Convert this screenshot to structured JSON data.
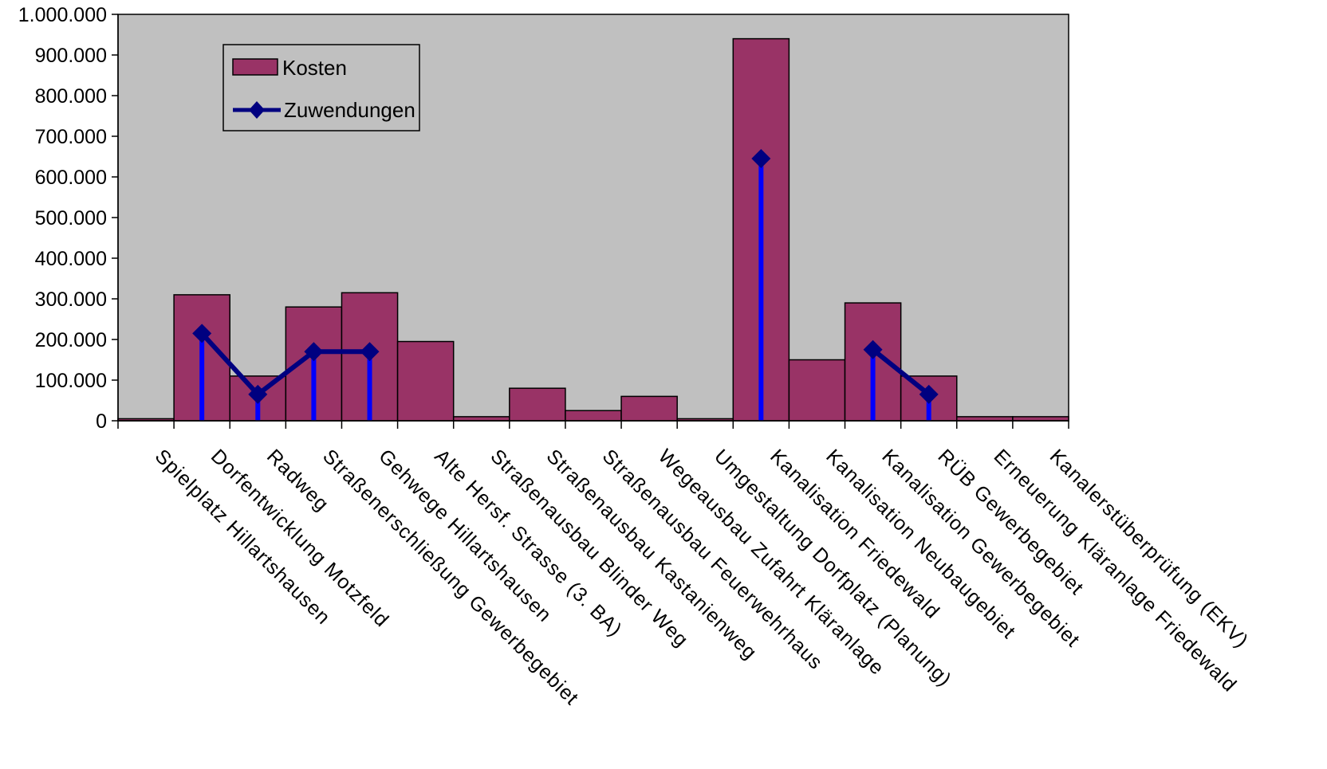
{
  "chart_data": {
    "type": "bar",
    "categories": [
      "Spielplatz Hillartshausen",
      "Dorfentwicklung Motzfeld",
      "Radweg",
      "Straßenerschließung Gewerbegebiet",
      "Gehwege Hillartshausen",
      "Alte Hersf. Strasse (3. BA)",
      "Straßenausbau Blinder Weg",
      "Straßenausbau Kastanienweg",
      "Straßenausbau Feuerwehrhaus",
      "Wegeausbau Zufahrt Kläranlage",
      "Umgestaltung Dorfplatz (Planung)",
      "Kanalisation Friedewald",
      "Kanalisation Neubaugebiet",
      "Kanalisation Gewerbegebiet",
      "RÜB Gewerbegebiet",
      "Erneuerung Kläranlage Friedewald",
      "Kanalerstüberprüfung (EKV)"
    ],
    "series": [
      {
        "name": "Kosten",
        "type": "bar",
        "color": "#993366",
        "values": [
          5000,
          310000,
          110000,
          280000,
          315000,
          195000,
          10000,
          80000,
          25000,
          60000,
          5000,
          940000,
          150000,
          290000,
          110000,
          10000,
          10000
        ]
      },
      {
        "name": "Zuwendungen",
        "type": "line",
        "color": "#000080",
        "drop_color": "#0000ff",
        "values": [
          null,
          215000,
          65000,
          170000,
          170000,
          null,
          null,
          null,
          null,
          null,
          null,
          645000,
          null,
          175000,
          65000,
          null,
          null
        ]
      }
    ],
    "ylim": [
      0,
      1000000
    ],
    "yticks": [
      "0",
      "100.000",
      "200.000",
      "300.000",
      "400.000",
      "500.000",
      "600.000",
      "700.000",
      "800.000",
      "900.000",
      "1.000.000"
    ],
    "plot_background": "#c0c0c0",
    "grid": false,
    "legend_position": "top-left"
  }
}
